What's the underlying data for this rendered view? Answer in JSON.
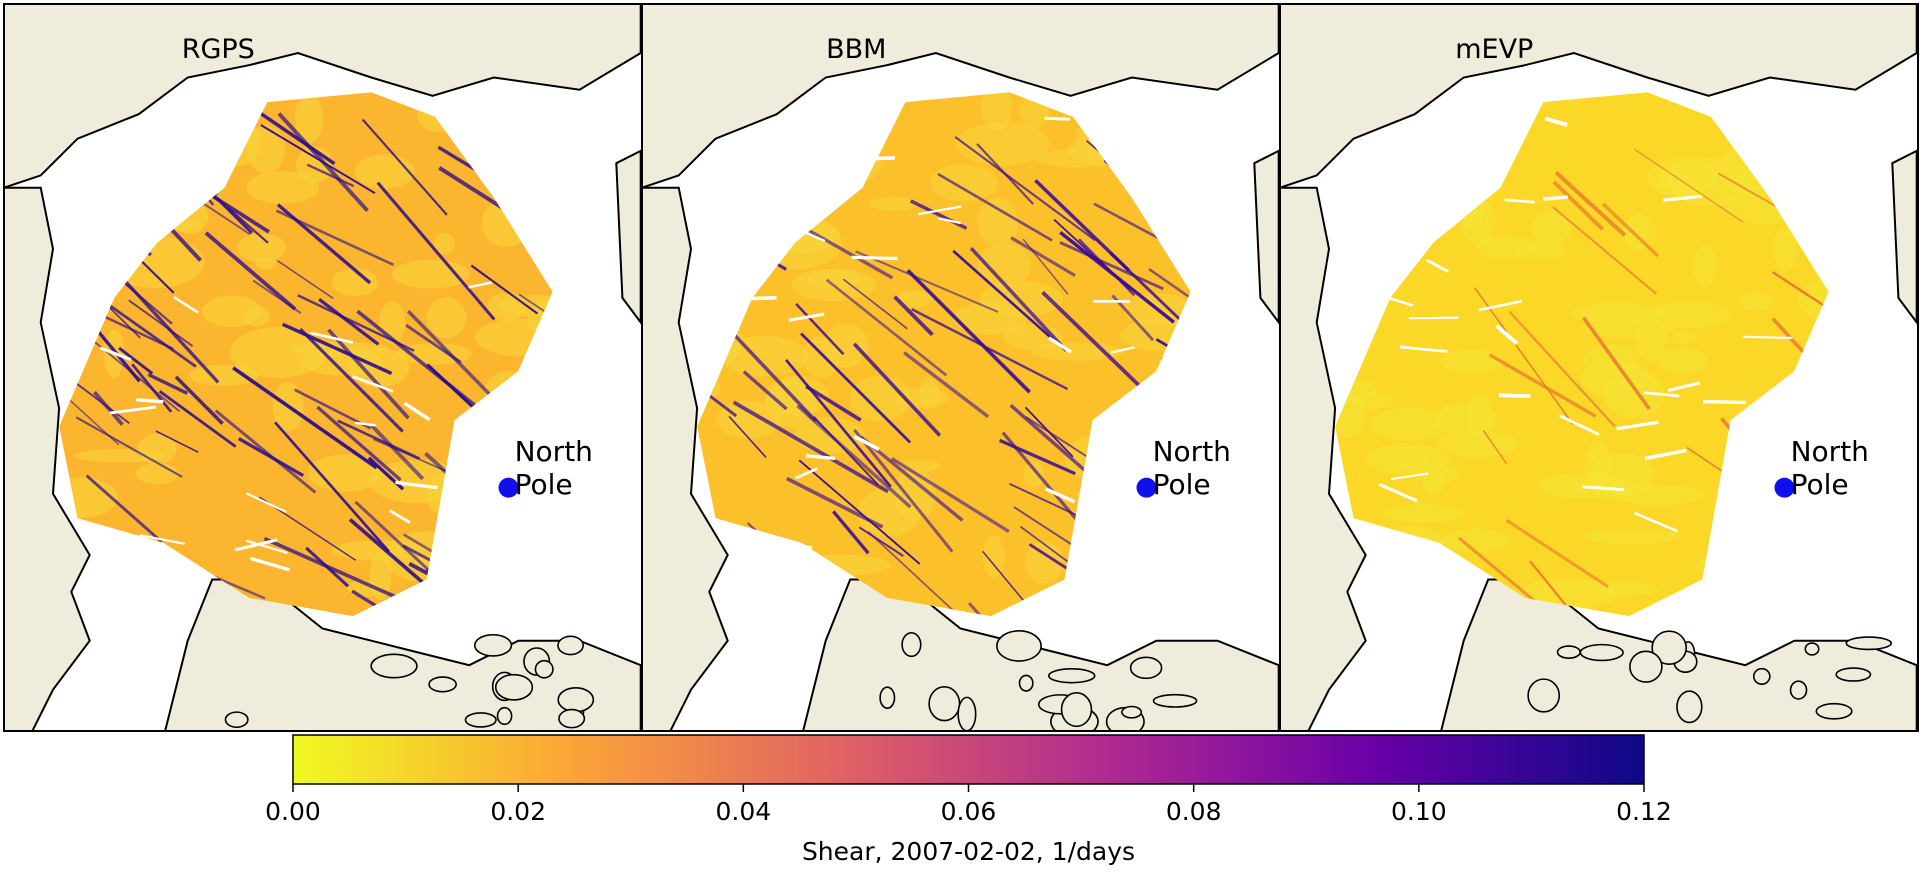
{
  "panels": [
    {
      "title": "RGPS",
      "annotation": "North Pole"
    },
    {
      "title": "BBM",
      "annotation": "North Pole"
    },
    {
      "title": "mEVP",
      "annotation": "North Pole"
    }
  ],
  "colorbar": {
    "label": "Shear, 2007-02-02, 1/days",
    "lim": [
      0,
      0.12
    ],
    "ticks": [
      {
        "value": 0,
        "label": "0.00"
      },
      {
        "value": 0.02,
        "label": "0.02"
      },
      {
        "value": 0.04,
        "label": "0.04"
      },
      {
        "value": 0.06,
        "label": "0.06"
      },
      {
        "value": 0.08,
        "label": "0.08"
      },
      {
        "value": 0.1,
        "label": "0.10"
      },
      {
        "value": 0.12,
        "label": "0.12"
      }
    ],
    "colormap": [
      "#f0f921",
      "#fca636",
      "#e16462",
      "#b12a90",
      "#6a00a8",
      "#0d0887"
    ]
  }
}
